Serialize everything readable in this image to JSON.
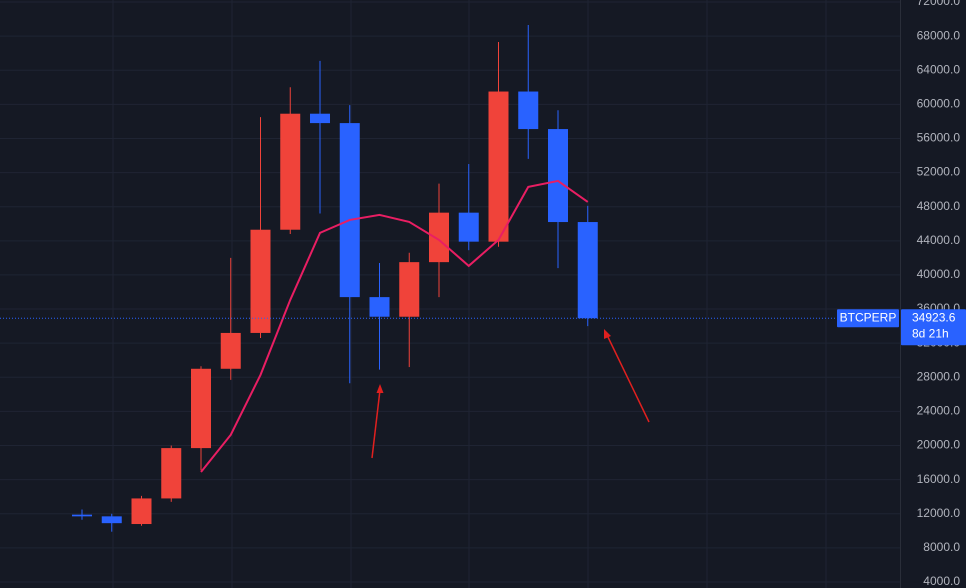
{
  "chart_data": {
    "type": "candlestick",
    "ylim": [
      3300,
      72230
    ],
    "yticks": [
      {
        "value": 4000,
        "label": "4000.0"
      },
      {
        "value": 8000,
        "label": "8000.0"
      },
      {
        "value": 12000,
        "label": "12000.0"
      },
      {
        "value": 16000,
        "label": "16000.0"
      },
      {
        "value": 20000,
        "label": "20000.0"
      },
      {
        "value": 24000,
        "label": "24000.0"
      },
      {
        "value": 28000,
        "label": "28000.0"
      },
      {
        "value": 32000,
        "label": "32000.0"
      },
      {
        "value": 36000,
        "label": "36000.0"
      },
      {
        "value": 40000,
        "label": "40000.0"
      },
      {
        "value": 44000,
        "label": "44000.0"
      },
      {
        "value": 48000,
        "label": "48000.0"
      },
      {
        "value": 52000,
        "label": "52000.0"
      },
      {
        "value": 56000,
        "label": "56000.0"
      },
      {
        "value": 60000,
        "label": "60000.0"
      },
      {
        "value": 64000,
        "label": "64000.0"
      },
      {
        "value": 68000,
        "label": "68000.0"
      },
      {
        "value": 72000,
        "label": "72000.0"
      }
    ],
    "grid": true,
    "up_color": "#f0433a",
    "down_color": "#2962ff",
    "open": [
      11900,
      11700,
      10800,
      13800,
      19700,
      29000,
      33200,
      45300,
      58900,
      57800,
      37400,
      35100,
      41500,
      47300,
      43900,
      61500,
      57100,
      46200
    ],
    "high": [
      12500,
      12000,
      14100,
      20000,
      29300,
      42000,
      58500,
      62000,
      65100,
      59900,
      41400,
      42600,
      50700,
      53000,
      67300,
      69300,
      59300,
      48100
    ],
    "low": [
      11300,
      9900,
      10600,
      13400,
      17100,
      27700,
      32600,
      44800,
      47200,
      27300,
      28900,
      29200,
      37400,
      42900,
      43300,
      53600,
      40800,
      34000
    ],
    "close": [
      11700,
      10900,
      13800,
      19700,
      29000,
      33200,
      45300,
      58900,
      57800,
      37400,
      35100,
      41500,
      47300,
      43900,
      61500,
      57100,
      46200,
      34923.6
    ],
    "ma": {
      "color": "#e91e63",
      "values": [
        null,
        null,
        null,
        null,
        16900,
        21250,
        28280,
        37070,
        44930,
        46450,
        47040,
        46220,
        44110,
        41060,
        44110,
        50320,
        51020,
        48560
      ]
    },
    "last_price": {
      "symbol": "BTCPERP",
      "value": 34923.6,
      "countdown": "8d 21h"
    }
  }
}
